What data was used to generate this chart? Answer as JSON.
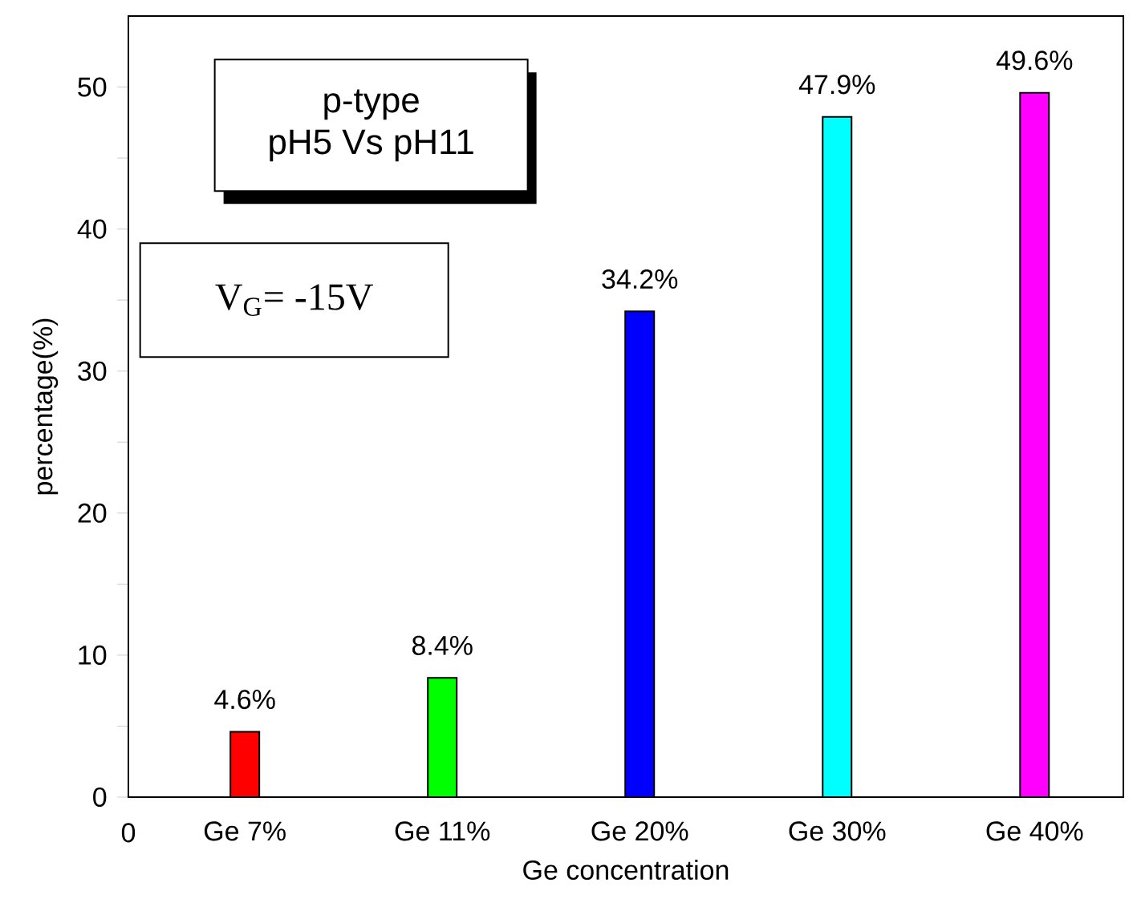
{
  "chart_data": {
    "type": "bar",
    "xlabel": "Ge concentration",
    "ylabel": "percentage(%)",
    "categories": [
      "Ge 7%",
      "Ge 11%",
      "Ge 20%",
      "Ge 30%",
      "Ge 40%"
    ],
    "values": [
      4.6,
      8.4,
      34.2,
      47.9,
      49.6
    ],
    "colors": [
      "#ff0000",
      "#00ff00",
      "#0000ff",
      "#00ffff",
      "#ff00ff"
    ],
    "value_labels": [
      "4.6%",
      "8.4%",
      "34.2%",
      "47.9%",
      "49.6%"
    ],
    "ylim": [
      0,
      55
    ],
    "yticks": [
      0,
      {
        "value": 5,
        "label": null
      },
      10,
      {
        "value": 15,
        "label": null
      },
      20,
      {
        "value": 25,
        "label": null
      },
      30,
      {
        "value": 35,
        "label": null
      },
      40,
      {
        "value": 45,
        "label": null
      },
      50
    ],
    "annotations": [
      "p-type",
      "pH5 Vs pH11",
      "V$_{G}$= -15V",
      "0"
    ]
  }
}
